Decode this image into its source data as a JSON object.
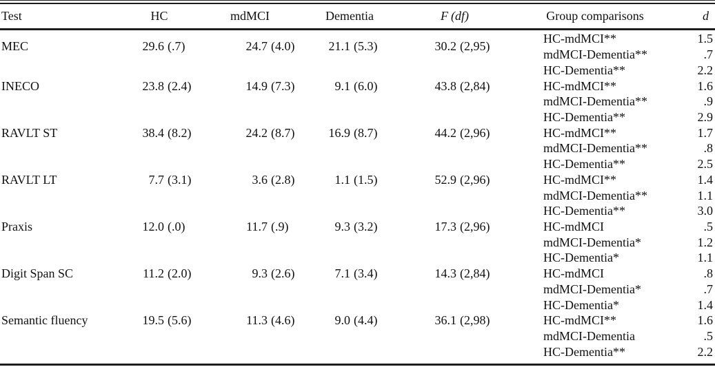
{
  "colors": {
    "text": "#111111",
    "rule": "#1c1c1c",
    "background": "#ffffff"
  },
  "table": {
    "columns": {
      "test": "Test",
      "hc": "HC",
      "mdmci": "mdMCI",
      "dementia": "Dementia",
      "f_symbol": "F",
      "f_df": "(df)",
      "group": "Group comparisons",
      "d": "d"
    },
    "rows": [
      {
        "test": "MEC",
        "hc": {
          "mean": "29.6",
          "sd": "(.7)"
        },
        "mdmci": {
          "mean": "24.7",
          "sd": "(4.0)"
        },
        "dementia": {
          "mean": "21.1",
          "sd": "(5.3)"
        },
        "f": {
          "value": "30.2",
          "df": "(2,95)"
        },
        "comparisons": [
          {
            "label": "HC-mdMCI**",
            "d": "1.5"
          },
          {
            "label": "mdMCI-Dementia**",
            "d": ".7"
          },
          {
            "label": "HC-Dementia**",
            "d": "2.2"
          }
        ]
      },
      {
        "test": "INECO",
        "hc": {
          "mean": "23.8",
          "sd": "(2.4)"
        },
        "mdmci": {
          "mean": "14.9",
          "sd": "(7.3)"
        },
        "dementia": {
          "mean": "9.1",
          "sd": "(6.0)"
        },
        "f": {
          "value": "43.8",
          "df": "(2,84)"
        },
        "comparisons": [
          {
            "label": "HC-mdMCI**",
            "d": "1.6"
          },
          {
            "label": "mdMCI-Dementia**",
            "d": ".9"
          },
          {
            "label": "HC-Dementia**",
            "d": "2.9"
          }
        ]
      },
      {
        "test": "RAVLT ST",
        "hc": {
          "mean": "38.4",
          "sd": "(8.2)"
        },
        "mdmci": {
          "mean": "24.2",
          "sd": "(8.7)"
        },
        "dementia": {
          "mean": "16.9",
          "sd": "(8.7)"
        },
        "f": {
          "value": "44.2",
          "df": "(2,96)"
        },
        "comparisons": [
          {
            "label": "HC-mdMCI**",
            "d": "1.7"
          },
          {
            "label": "mdMCI-Dementia**",
            "d": ".8"
          },
          {
            "label": "HC-Dementia**",
            "d": "2.5"
          }
        ]
      },
      {
        "test": "RAVLT LT",
        "hc": {
          "mean": "7.7",
          "sd": "(3.1)"
        },
        "mdmci": {
          "mean": "3.6",
          "sd": "(2.8)"
        },
        "dementia": {
          "mean": "1.1",
          "sd": "(1.5)"
        },
        "f": {
          "value": "52.9",
          "df": "(2,96)"
        },
        "comparisons": [
          {
            "label": "HC-mdMCI**",
            "d": "1.4"
          },
          {
            "label": "mdMCI-Dementia**",
            "d": "1.1"
          },
          {
            "label": "HC-Dementia**",
            "d": "3.0"
          }
        ]
      },
      {
        "test": "Praxis",
        "hc": {
          "mean": "12.0",
          "sd": "(.0)"
        },
        "mdmci": {
          "mean": "11.7",
          "sd": "(.9)"
        },
        "dementia": {
          "mean": "9.3",
          "sd": "(3.2)"
        },
        "f": {
          "value": "17.3",
          "df": "(2,96)"
        },
        "comparisons": [
          {
            "label": "HC-mdMCI",
            "d": ".5"
          },
          {
            "label": "mdMCI-Dementia*",
            "d": "1.2"
          },
          {
            "label": "HC-Dementia*",
            "d": "1.1"
          }
        ]
      },
      {
        "test": "Digit Span SC",
        "hc": {
          "mean": "11.2",
          "sd": "(2.0)"
        },
        "mdmci": {
          "mean": "9.3",
          "sd": "(2.6)"
        },
        "dementia": {
          "mean": "7.1",
          "sd": "(3.4)"
        },
        "f": {
          "value": "14.3",
          "df": "(2,84)"
        },
        "comparisons": [
          {
            "label": "HC-mdMCI",
            "d": ".8"
          },
          {
            "label": "mdMCI-Dementia*",
            "d": ".7"
          },
          {
            "label": "HC-Dementia*",
            "d": "1.4"
          }
        ]
      },
      {
        "test": "Semantic fluency",
        "hc": {
          "mean": "19.5",
          "sd": "(5.6)"
        },
        "mdmci": {
          "mean": "11.3",
          "sd": "(4.6)"
        },
        "dementia": {
          "mean": "9.0",
          "sd": "(4.4)"
        },
        "f": {
          "value": "36.1",
          "df": "(2,98)"
        },
        "comparisons": [
          {
            "label": "HC-mdMCI**",
            "d": "1.6"
          },
          {
            "label": "mdMCI-Dementia",
            "d": ".5"
          },
          {
            "label": "HC-Dementia**",
            "d": "2.2"
          }
        ]
      }
    ]
  }
}
